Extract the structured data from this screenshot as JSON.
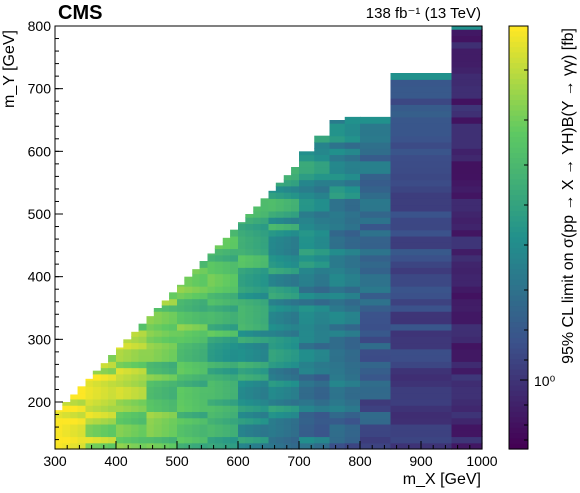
{
  "chart_data": {
    "type": "heatmap",
    "experiment": "CMS",
    "lumi_label": "138 fb⁻¹ (13 TeV)",
    "xlabel": "m_X [GeV]",
    "ylabel": "m_Y [GeV]",
    "zlabel": "95% CL limit on σ(pp → X → YH)B(Y → γγ) [fb]",
    "xlim": [
      300,
      1000
    ],
    "ylim": [
      125,
      800
    ],
    "x_ticks": [
      "300",
      "400",
      "500",
      "600",
      "700",
      "800",
      "900",
      "1000"
    ],
    "y_ticks": [
      "200",
      "300",
      "400",
      "500",
      "600",
      "700",
      "800"
    ],
    "colorbar_tick": "10⁰",
    "colormap": [
      "#440154",
      "#3b528b",
      "#21918c",
      "#5ec962",
      "#fde725"
    ],
    "z_scale": "log",
    "grid": false,
    "x_columns": [
      [
        300,
        312
      ],
      [
        312,
        325
      ],
      [
        325,
        337
      ],
      [
        337,
        350
      ],
      [
        350,
        362
      ],
      [
        362,
        375
      ],
      [
        375,
        387
      ],
      [
        387,
        400
      ],
      [
        400,
        412
      ],
      [
        412,
        425
      ],
      [
        425,
        437
      ],
      [
        437,
        450
      ],
      [
        450,
        462
      ],
      [
        462,
        475
      ],
      [
        475,
        487
      ],
      [
        487,
        500
      ],
      [
        500,
        512
      ],
      [
        512,
        525
      ],
      [
        525,
        537
      ],
      [
        537,
        550
      ],
      [
        550,
        562
      ],
      [
        562,
        575
      ],
      [
        575,
        587
      ],
      [
        587,
        600
      ],
      [
        600,
        612
      ],
      [
        612,
        625
      ],
      [
        625,
        637
      ],
      [
        637,
        650
      ],
      [
        650,
        662
      ],
      [
        662,
        675
      ],
      [
        675,
        687
      ],
      [
        687,
        700
      ],
      [
        700,
        725
      ],
      [
        725,
        750
      ],
      [
        750,
        775
      ],
      [
        775,
        800
      ],
      [
        800,
        850
      ],
      [
        850,
        950
      ],
      [
        950,
        1000
      ]
    ],
    "top_band_note": "values along m_Y axis per column"
  },
  "colorbar_ticks_text": "10⁰"
}
